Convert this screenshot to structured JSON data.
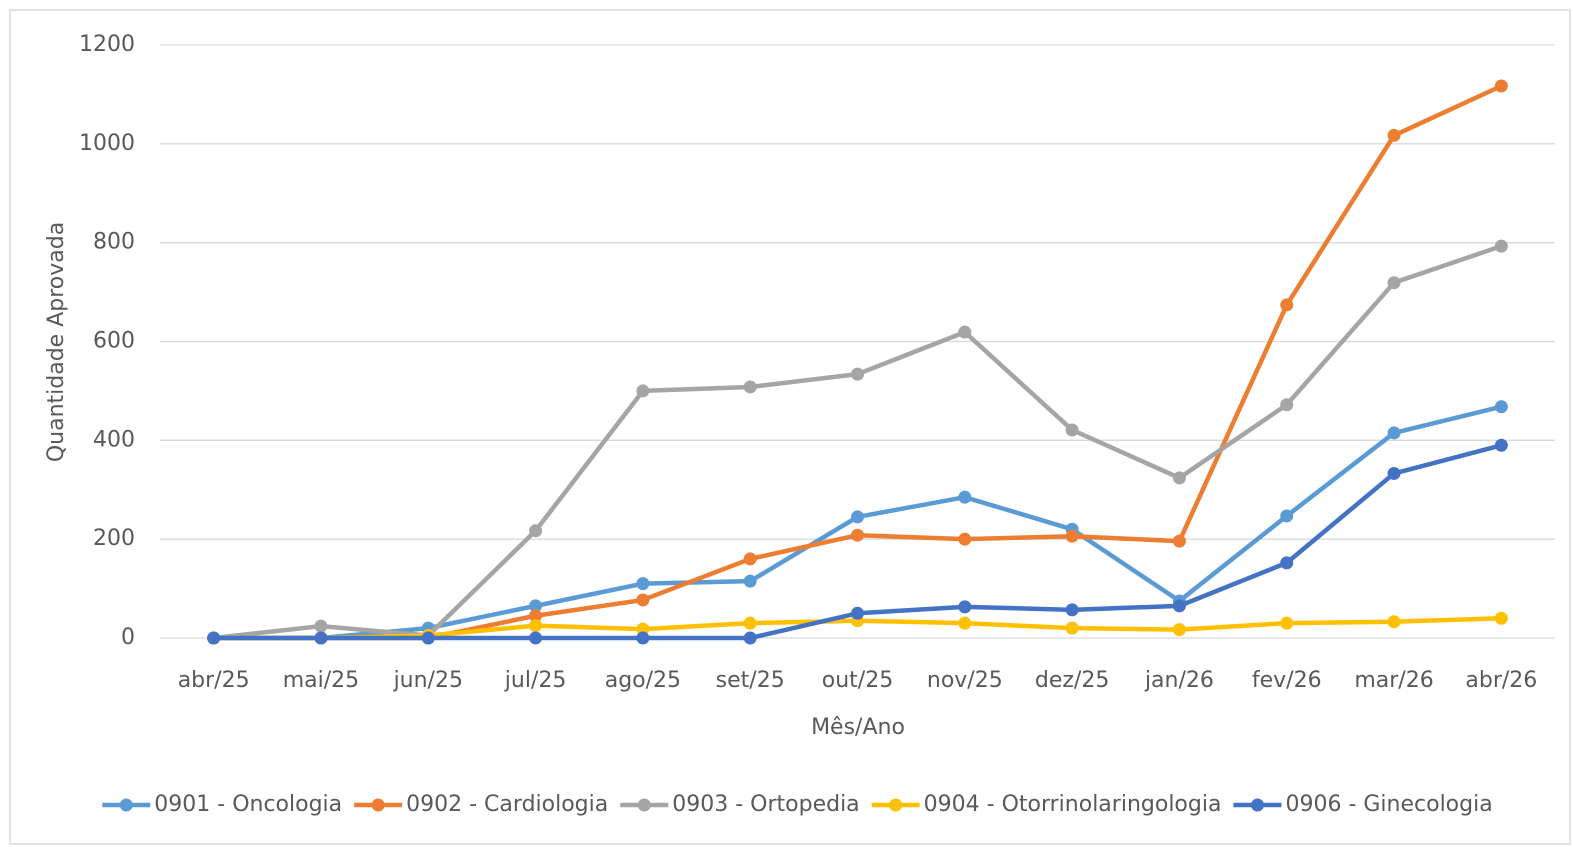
{
  "chart_data": {
    "type": "line",
    "x_label": "Mês/Ano",
    "y_label": "Quantidade Aprovada",
    "categories": [
      "abr/25",
      "mai/25",
      "jun/25",
      "jul/25",
      "ago/25",
      "set/25",
      "out/25",
      "nov/25",
      "dez/25",
      "jan/26",
      "fev/26",
      "mar/26",
      "abr/26"
    ],
    "series": [
      {
        "name": "0901 - Oncologia",
        "color": "#5b9bd5",
        "values": [
          0,
          0,
          20,
          65,
          110,
          115,
          245,
          285,
          220,
          75,
          247,
          415,
          468
        ]
      },
      {
        "name": "0902 - Cardiologia",
        "color": "#ed7d31",
        "values": [
          0,
          0,
          0,
          45,
          77,
          160,
          208,
          200,
          206,
          196,
          674,
          1017,
          1117
        ]
      },
      {
        "name": "0903 - Ortopedia",
        "color": "#a5a5a5",
        "values": [
          0,
          24,
          5,
          217,
          500,
          508,
          534,
          619,
          421,
          324,
          472,
          719,
          793
        ]
      },
      {
        "name": "0904 - Otorrinolaringologia",
        "color": "#ffc000",
        "values": [
          0,
          0,
          5,
          25,
          18,
          30,
          35,
          30,
          20,
          17,
          30,
          33,
          40
        ]
      },
      {
        "name": "0906 - Ginecologia",
        "color": "#4472c4",
        "values": [
          0,
          0,
          0,
          0,
          0,
          0,
          50,
          63,
          57,
          65,
          152,
          333,
          390
        ]
      }
    ],
    "ylim": [
      0,
      1200
    ],
    "yticks": [
      0,
      200,
      400,
      600,
      800,
      1000,
      1200
    ],
    "grid": true,
    "legend": "bottom"
  }
}
